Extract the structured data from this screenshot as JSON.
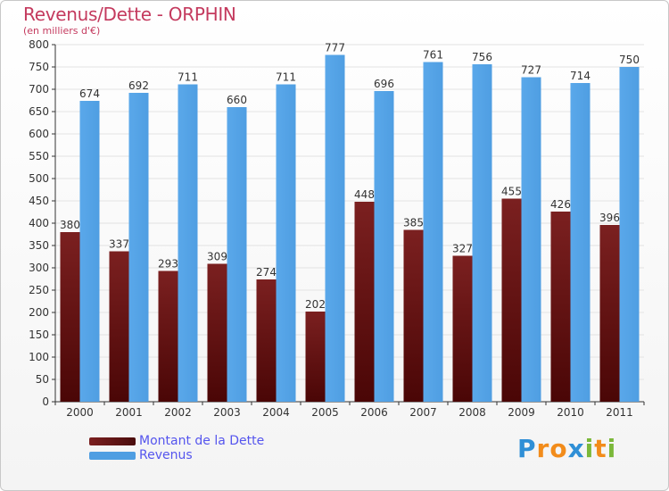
{
  "header": {
    "title": "Revenus/Dette - ORPHIN",
    "subtitle": "(en milliers d'€)"
  },
  "logo": {
    "text": "Proxiti",
    "letters": [
      {
        "ch": "P",
        "color": "#2f8fd6"
      },
      {
        "ch": "r",
        "color": "#f28c1b"
      },
      {
        "ch": "o",
        "color": "#f28c1b"
      },
      {
        "ch": "x",
        "color": "#2f8fd6"
      },
      {
        "ch": "i",
        "color": "#7bb83a"
      },
      {
        "ch": "t",
        "color": "#f28c1b"
      },
      {
        "ch": "i",
        "color": "#7bb83a"
      }
    ]
  },
  "colors": {
    "dette": "#7b2020",
    "revenus": "#4f9ee2",
    "grid": "#e3e3e3",
    "axis": "#333333"
  },
  "chart_data": {
    "type": "bar",
    "title": "Revenus/Dette - ORPHIN",
    "subtitle": "(en milliers d'€)",
    "categories": [
      "2000",
      "2001",
      "2002",
      "2003",
      "2004",
      "2005",
      "2006",
      "2007",
      "2008",
      "2009",
      "2010",
      "2011"
    ],
    "series": [
      {
        "name": "Montant de la Dette",
        "values": [
          380,
          337,
          293,
          309,
          274,
          202,
          448,
          385,
          327,
          455,
          426,
          396
        ]
      },
      {
        "name": "Revenus",
        "values": [
          674,
          692,
          711,
          660,
          711,
          777,
          696,
          761,
          756,
          727,
          714,
          750
        ]
      }
    ],
    "ylim": [
      0,
      800
    ],
    "yticks": [
      0,
      50,
      100,
      150,
      200,
      250,
      300,
      350,
      400,
      450,
      500,
      550,
      600,
      650,
      700,
      750,
      800
    ],
    "grid": true,
    "legend_position": "bottom-left"
  }
}
